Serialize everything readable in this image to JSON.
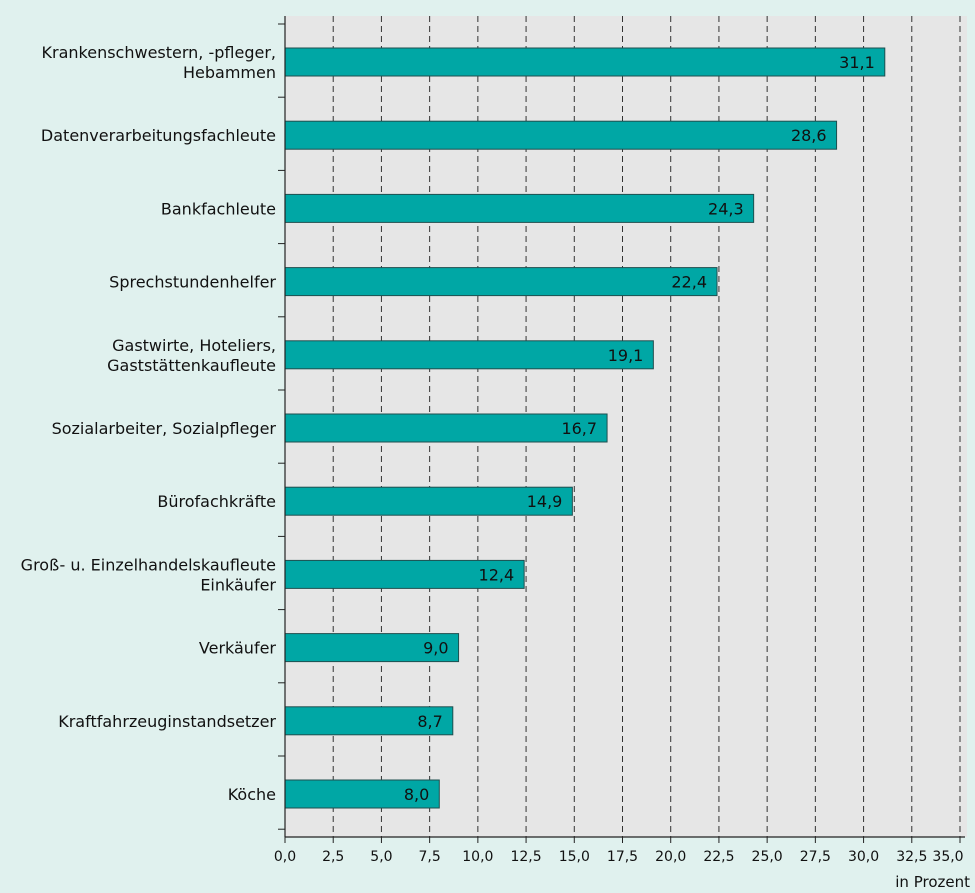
{
  "colors": {
    "page_background": "#e0f1ee",
    "plot_background": "#e6e6e6",
    "bar_fill": "#00a7a5",
    "bar_stroke": "#1f4f4f",
    "grid": "#333333"
  },
  "chart_data": {
    "type": "bar",
    "orientation": "horizontal",
    "categories": [
      "Krankenschwestern, -pfleger, Hebammen",
      "Datenverarbeitungsfachleute",
      "Bankfachleute",
      "Sprechstundenhelfer",
      "Gastwirte, Hoteliers, Gaststättenkaufleute",
      "Sozialarbeiter, Sozialpfleger",
      "Bürofachkräfte",
      "Groß- u. Einzelhandelskaufleute Einkäufer",
      "Verkäufer",
      "Kraftfahrzeuginstandsetzer",
      "Köche"
    ],
    "category_label_lines": [
      [
        "Krankenschwestern, -pfleger,",
        "Hebammen"
      ],
      [
        "Datenverarbeitungsfachleute"
      ],
      [
        "Bankfachleute"
      ],
      [
        "Sprechstundenhelfer"
      ],
      [
        "Gastwirte, Hoteliers,",
        "Gaststättenkaufleute"
      ],
      [
        "Sozialarbeiter, Sozialpfleger"
      ],
      [
        "Bürofachkräfte"
      ],
      [
        "Groß- u. Einzelhandelskaufleute",
        "Einkäufer"
      ],
      [
        "Verkäufer"
      ],
      [
        "Kraftfahrzeuginstandsetzer"
      ],
      [
        "Köche"
      ]
    ],
    "values": [
      31.1,
      28.6,
      24.3,
      22.4,
      19.1,
      16.7,
      14.9,
      12.4,
      9.0,
      8.7,
      8.0
    ],
    "value_labels": [
      "31,1",
      "28,6",
      "24,3",
      "22,4",
      "19,1",
      "16,7",
      "14,9",
      "12,4",
      "9,0",
      "8,7",
      "8,0"
    ],
    "x_ticks": [
      0,
      2.5,
      5,
      7.5,
      10,
      12.5,
      15,
      17.5,
      20,
      22.5,
      25,
      27.5,
      30,
      32.5,
      35
    ],
    "x_tick_labels": [
      "0,0",
      "2,5",
      "5,0",
      "7,5",
      "10,0",
      "12,5",
      "15,0",
      "17,5",
      "20,0",
      "22,5",
      "25,0",
      "27,5",
      "30,0",
      "32,5",
      "35,0"
    ],
    "xlim": [
      0,
      35
    ],
    "xlabel": "in Prozent",
    "title": "",
    "grid": true,
    "grid_style": "dashed vertical"
  }
}
